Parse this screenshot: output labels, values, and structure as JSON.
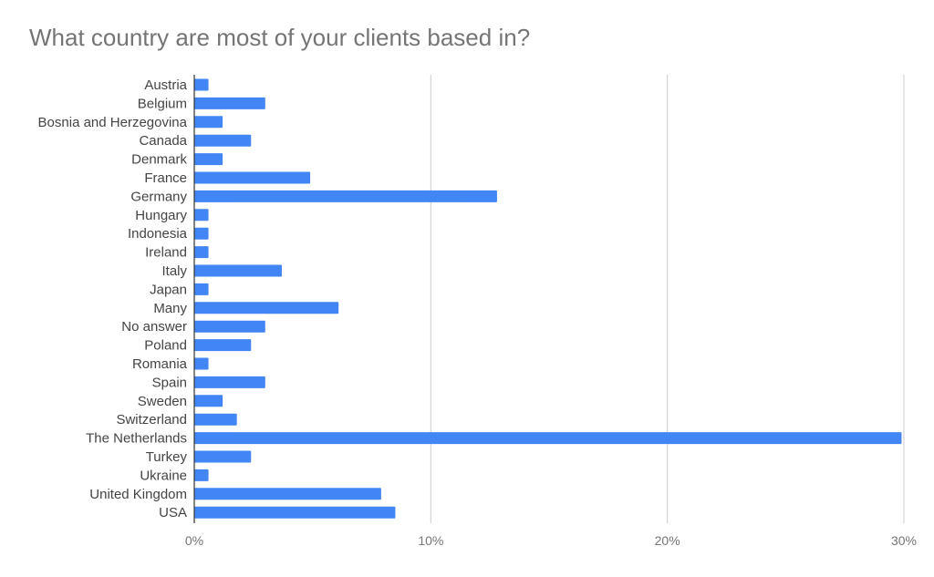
{
  "chart_data": {
    "type": "bar",
    "orientation": "horizontal",
    "title": "What country are most of your clients based in?",
    "xlabel": "",
    "ylabel": "",
    "categories": [
      "Austria",
      "Belgium",
      "Bosnia and Herzegovina",
      "Canada",
      "Denmark",
      "France",
      "Germany",
      "Hungary",
      "Indonesia",
      "Ireland",
      "Italy",
      "Japan",
      "Many",
      "No answer",
      "Poland",
      "Romania",
      "Spain",
      "Sweden",
      "Switzerland",
      "The Netherlands",
      "Turkey",
      "Ukraine",
      "United Kingdom",
      "USA"
    ],
    "values": [
      0.6,
      3.0,
      1.2,
      2.4,
      1.2,
      4.9,
      12.8,
      0.6,
      0.6,
      0.6,
      3.7,
      0.6,
      6.1,
      3.0,
      2.4,
      0.6,
      3.0,
      1.2,
      1.8,
      29.9,
      2.4,
      0.6,
      7.9,
      8.5
    ],
    "xlim": [
      0,
      30
    ],
    "ticks": [
      "0%",
      "10%",
      "20%",
      "30%"
    ],
    "grid": true,
    "legend": "none",
    "bar_color": "#4285f4",
    "grid_color": "#cccccc",
    "axis_color": "#333333"
  }
}
